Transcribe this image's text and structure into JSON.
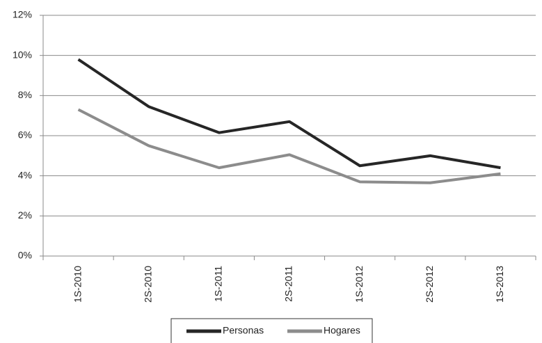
{
  "chart_data": {
    "type": "line",
    "categories": [
      "1S-2010",
      "2S-2010",
      "1S-2011",
      "2S-2011",
      "1S-2012",
      "2S-2012",
      "1S-2013"
    ],
    "series": [
      {
        "name": "Personas",
        "color": "#262626",
        "values": [
          9.8,
          7.45,
          6.15,
          6.7,
          4.5,
          5.0,
          4.4
        ]
      },
      {
        "name": "Hogares",
        "color": "#8c8c8c",
        "values": [
          7.3,
          5.5,
          4.4,
          5.05,
          3.7,
          3.65,
          4.1
        ]
      }
    ],
    "ylim": [
      0,
      12
    ],
    "yticks": [
      {
        "value": 0,
        "label": "0%"
      },
      {
        "value": 2,
        "label": "2%"
      },
      {
        "value": 4,
        "label": "4%"
      },
      {
        "value": 6,
        "label": "6%"
      },
      {
        "value": 8,
        "label": "8%"
      },
      {
        "value": 10,
        "label": "10%"
      },
      {
        "value": 12,
        "label": "12%"
      }
    ],
    "grid": true,
    "legend": "bottom"
  }
}
